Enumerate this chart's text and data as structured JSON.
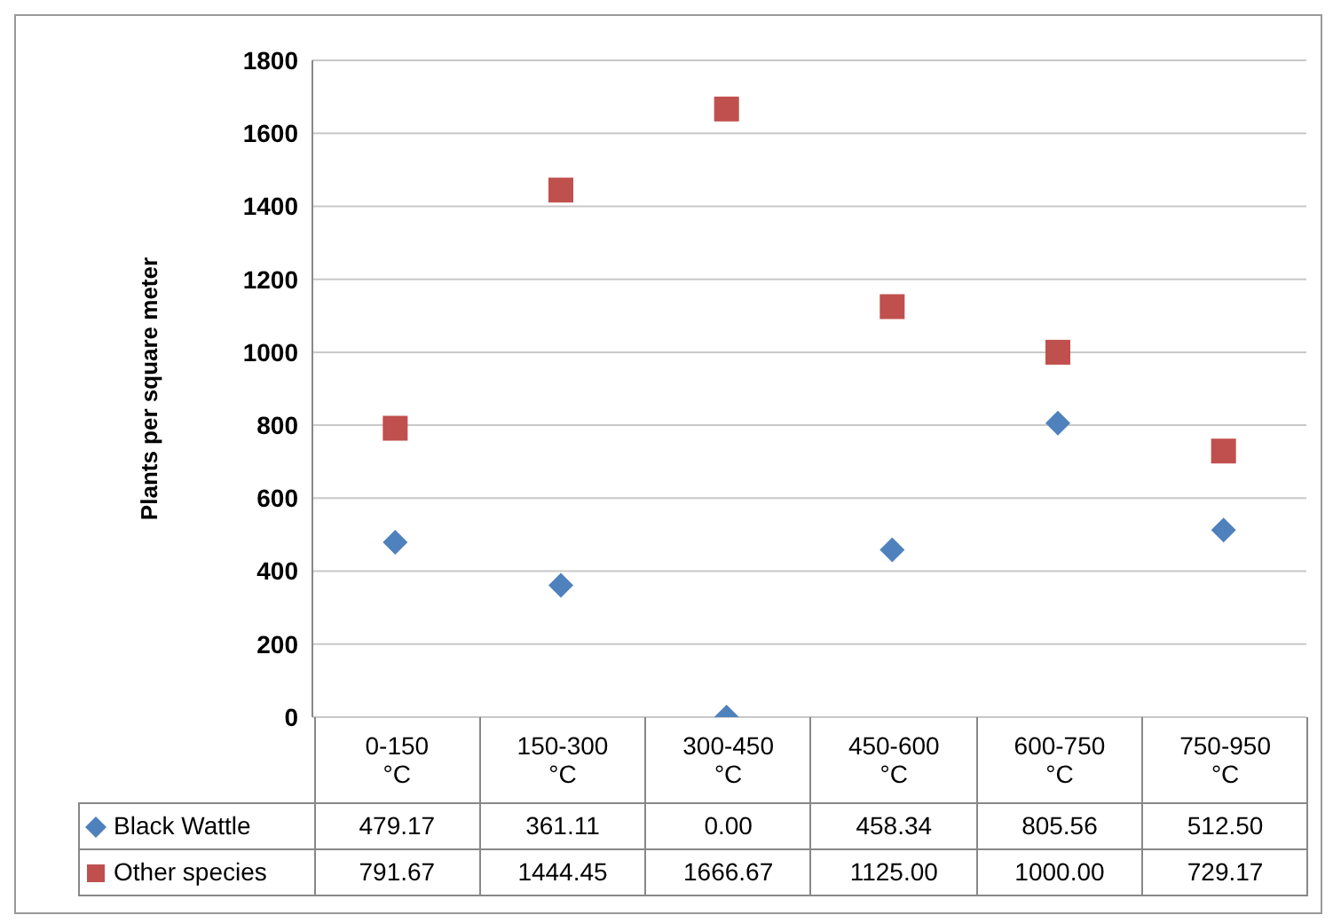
{
  "chart_data": {
    "type": "scatter",
    "ylabel": "Plants per square meter",
    "categories": [
      "0-150 °C",
      "150-300 °C",
      "300-450 °C",
      "450-600 °C",
      "600-750 °C",
      "750-950 °C"
    ],
    "series": [
      {
        "name": "Black Wattle",
        "color": "#4f81bd",
        "marker": "diamond",
        "values": [
          479.17,
          361.11,
          0,
          458.34,
          805.56,
          512.5
        ],
        "value_labels": [
          "479.17",
          "361.11",
          "0.00",
          "458.34",
          "805.56",
          "512.50"
        ]
      },
      {
        "name": "Other species",
        "color": "#c0504d",
        "marker": "square",
        "values": [
          791.67,
          1444.45,
          1666.67,
          1125,
          1000,
          729.17
        ],
        "value_labels": [
          "791.67",
          "1444.45",
          "1666.67",
          "1125.00",
          "1000.00",
          "729.17"
        ]
      }
    ],
    "ylim": [
      0,
      1800
    ],
    "yticks": [
      0,
      200,
      400,
      600,
      800,
      1000,
      1200,
      1400,
      1600,
      1800
    ],
    "grid": "y",
    "legend": "bottom"
  }
}
